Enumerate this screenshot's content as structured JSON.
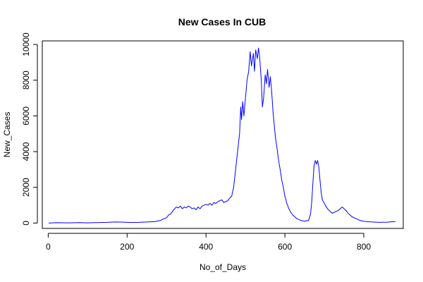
{
  "chart_data": {
    "type": "line",
    "title": "New Cases In CUB",
    "xlabel": "No_of_Days",
    "ylabel": "New_Cases",
    "xlim": [
      -15,
      900
    ],
    "ylim": [
      -300,
      10200
    ],
    "xticks": [
      0,
      200,
      400,
      600,
      800
    ],
    "yticks": [
      0,
      2000,
      4000,
      6000,
      8000,
      10000
    ],
    "grid": false,
    "line_color": "#0000ff",
    "series": [
      {
        "points": [
          [
            1,
            0
          ],
          [
            20,
            20
          ],
          [
            50,
            10
          ],
          [
            80,
            25
          ],
          [
            100,
            10
          ],
          [
            130,
            30
          ],
          [
            150,
            40
          ],
          [
            170,
            60
          ],
          [
            190,
            50
          ],
          [
            210,
            30
          ],
          [
            230,
            40
          ],
          [
            250,
            60
          ],
          [
            270,
            80
          ],
          [
            285,
            150
          ],
          [
            295,
            260
          ],
          [
            300,
            300
          ],
          [
            305,
            450
          ],
          [
            310,
            500
          ],
          [
            315,
            650
          ],
          [
            320,
            800
          ],
          [
            325,
            900
          ],
          [
            330,
            850
          ],
          [
            335,
            950
          ],
          [
            340,
            800
          ],
          [
            345,
            900
          ],
          [
            350,
            850
          ],
          [
            355,
            950
          ],
          [
            360,
            900
          ],
          [
            365,
            800
          ],
          [
            370,
            850
          ],
          [
            375,
            750
          ],
          [
            380,
            900
          ],
          [
            385,
            800
          ],
          [
            390,
            950
          ],
          [
            395,
            1000
          ],
          [
            400,
            1050
          ],
          [
            405,
            1000
          ],
          [
            410,
            1100
          ],
          [
            415,
            1000
          ],
          [
            420,
            1150
          ],
          [
            425,
            1100
          ],
          [
            430,
            1200
          ],
          [
            435,
            1250
          ],
          [
            440,
            1300
          ],
          [
            445,
            1150
          ],
          [
            450,
            1200
          ],
          [
            455,
            1250
          ],
          [
            460,
            1400
          ],
          [
            465,
            1500
          ],
          [
            470,
            2000
          ],
          [
            475,
            3000
          ],
          [
            480,
            4000
          ],
          [
            485,
            5000
          ],
          [
            488,
            6500
          ],
          [
            490,
            5800
          ],
          [
            493,
            6800
          ],
          [
            496,
            6000
          ],
          [
            500,
            7000
          ],
          [
            504,
            8000
          ],
          [
            508,
            8500
          ],
          [
            512,
            9600
          ],
          [
            515,
            8800
          ],
          [
            518,
            9200
          ],
          [
            520,
            9500
          ],
          [
            523,
            8500
          ],
          [
            526,
            9700
          ],
          [
            530,
            9200
          ],
          [
            533,
            9800
          ],
          [
            536,
            9300
          ],
          [
            540,
            8000
          ],
          [
            543,
            6500
          ],
          [
            546,
            7000
          ],
          [
            550,
            8300
          ],
          [
            553,
            7800
          ],
          [
            556,
            8600
          ],
          [
            560,
            7600
          ],
          [
            563,
            8200
          ],
          [
            566,
            7500
          ],
          [
            570,
            6200
          ],
          [
            573,
            5500
          ],
          [
            576,
            4800
          ],
          [
            580,
            4200
          ],
          [
            584,
            3500
          ],
          [
            588,
            3000
          ],
          [
            592,
            2400
          ],
          [
            596,
            2000
          ],
          [
            600,
            1500
          ],
          [
            605,
            1100
          ],
          [
            610,
            800
          ],
          [
            615,
            600
          ],
          [
            620,
            450
          ],
          [
            625,
            350
          ],
          [
            630,
            250
          ],
          [
            640,
            150
          ],
          [
            650,
            100
          ],
          [
            660,
            150
          ],
          [
            665,
            500
          ],
          [
            668,
            1200
          ],
          [
            671,
            2300
          ],
          [
            674,
            3200
          ],
          [
            677,
            3500
          ],
          [
            680,
            3300
          ],
          [
            683,
            3500
          ],
          [
            686,
            3100
          ],
          [
            689,
            2400
          ],
          [
            692,
            1700
          ],
          [
            695,
            1300
          ],
          [
            700,
            1100
          ],
          [
            705,
            900
          ],
          [
            710,
            750
          ],
          [
            715,
            650
          ],
          [
            720,
            550
          ],
          [
            725,
            600
          ],
          [
            730,
            650
          ],
          [
            735,
            700
          ],
          [
            740,
            800
          ],
          [
            745,
            900
          ],
          [
            750,
            800
          ],
          [
            755,
            700
          ],
          [
            760,
            550
          ],
          [
            765,
            450
          ],
          [
            770,
            350
          ],
          [
            780,
            250
          ],
          [
            790,
            150
          ],
          [
            800,
            100
          ],
          [
            820,
            60
          ],
          [
            840,
            40
          ],
          [
            860,
            50
          ],
          [
            870,
            70
          ],
          [
            880,
            80
          ]
        ]
      }
    ]
  }
}
